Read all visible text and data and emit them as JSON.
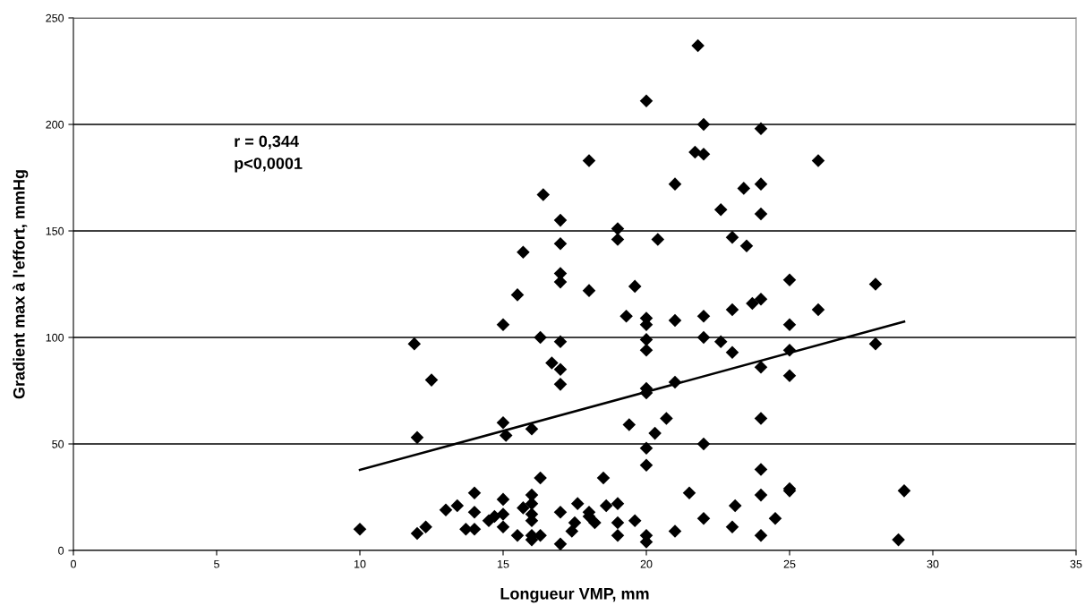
{
  "chart_data": {
    "type": "scatter",
    "xlabel": "Longueur VMP, mm",
    "ylabel": "Gradient max à l'effort, mmHg",
    "annotations": [
      "r = 0,344\np<0,0001"
    ],
    "xlim": [
      0,
      35
    ],
    "xticks": [
      0,
      5,
      10,
      15,
      20,
      25,
      30,
      35
    ],
    "ylim": [
      0,
      250
    ],
    "yticks": [
      0,
      50,
      100,
      150,
      200,
      250
    ],
    "grid": "y",
    "legend": false,
    "marker": "diamond",
    "series": [
      {
        "color": "#000000",
        "x": [
          11.9,
          12.5,
          12.0,
          15.0,
          15.1,
          16.0,
          16.7,
          17.0,
          17.0,
          17.0,
          10.0,
          12.0,
          12.3,
          13.0,
          13.4,
          14.0,
          14.0,
          13.7,
          14.0,
          14.5,
          14.7,
          15.0,
          15.0,
          15.0,
          15.5,
          15.7,
          16.0,
          16.0,
          16.0,
          16.0,
          16.0,
          16.0,
          16.3,
          16.3,
          17.0,
          17.0,
          17.5,
          17.4,
          17.6,
          18.0,
          18.0,
          18.2,
          18.5,
          18.6,
          18.0,
          16.4,
          17.0,
          15.7,
          17.0,
          17.0,
          17.0,
          18.0,
          15.5,
          15.0,
          16.3,
          21.8,
          20.0,
          22.0,
          24.0,
          21.7,
          22.0,
          26.0,
          21.0,
          23.4,
          24.0,
          22.6,
          24.0,
          19.0,
          19.0,
          20.4,
          23.0,
          23.5,
          25.0,
          19.6,
          24.0,
          23.7,
          26.0,
          23.0,
          19.3,
          20.0,
          20.0,
          21.0,
          22.0,
          25.0,
          22.0,
          20.0,
          20.0,
          22.6,
          23.0,
          25.0,
          24.0,
          25.0,
          21.0,
          20.0,
          20.0,
          24.0,
          20.7,
          19.4,
          20.3,
          20.0,
          22.0,
          20.0,
          24.0,
          21.5,
          25.0,
          25.0,
          24.0,
          19.0,
          23.1,
          19.0,
          19.6,
          22.0,
          24.5,
          21.0,
          23.0,
          19.0,
          20.0,
          20.0,
          24.0,
          28.0,
          28.0,
          29.0,
          28.8
        ],
        "values": [
          97,
          80,
          53,
          60,
          54,
          57,
          88,
          85,
          78,
          98,
          10,
          8,
          11,
          19,
          21,
          27,
          18,
          10,
          10,
          14,
          16,
          24,
          17,
          11,
          7,
          20,
          26,
          22,
          17,
          14,
          7,
          5,
          34,
          7,
          18,
          3,
          13,
          9,
          22,
          18,
          16,
          13,
          34,
          21,
          183,
          167,
          155,
          140,
          144,
          130,
          126,
          122,
          120,
          106,
          100,
          237,
          211,
          200,
          198,
          187,
          186,
          183,
          172,
          170,
          172,
          160,
          158,
          151,
          146,
          146,
          147,
          143,
          127,
          124,
          118,
          116,
          113,
          113,
          110,
          109,
          106,
          108,
          110,
          106,
          100,
          99,
          94,
          98,
          93,
          94,
          86,
          82,
          79,
          76,
          74,
          62,
          62,
          59,
          55,
          48,
          50,
          40,
          38,
          27,
          29,
          28,
          26,
          22,
          21,
          13,
          14,
          15,
          15,
          9,
          11,
          7,
          7,
          4,
          7,
          125,
          97,
          28,
          5
        ]
      },
      {
        "type": "line",
        "color": "#000000",
        "marker": "none",
        "x": [
          10,
          29
        ],
        "values": [
          37.8,
          107.4
        ]
      }
    ]
  }
}
